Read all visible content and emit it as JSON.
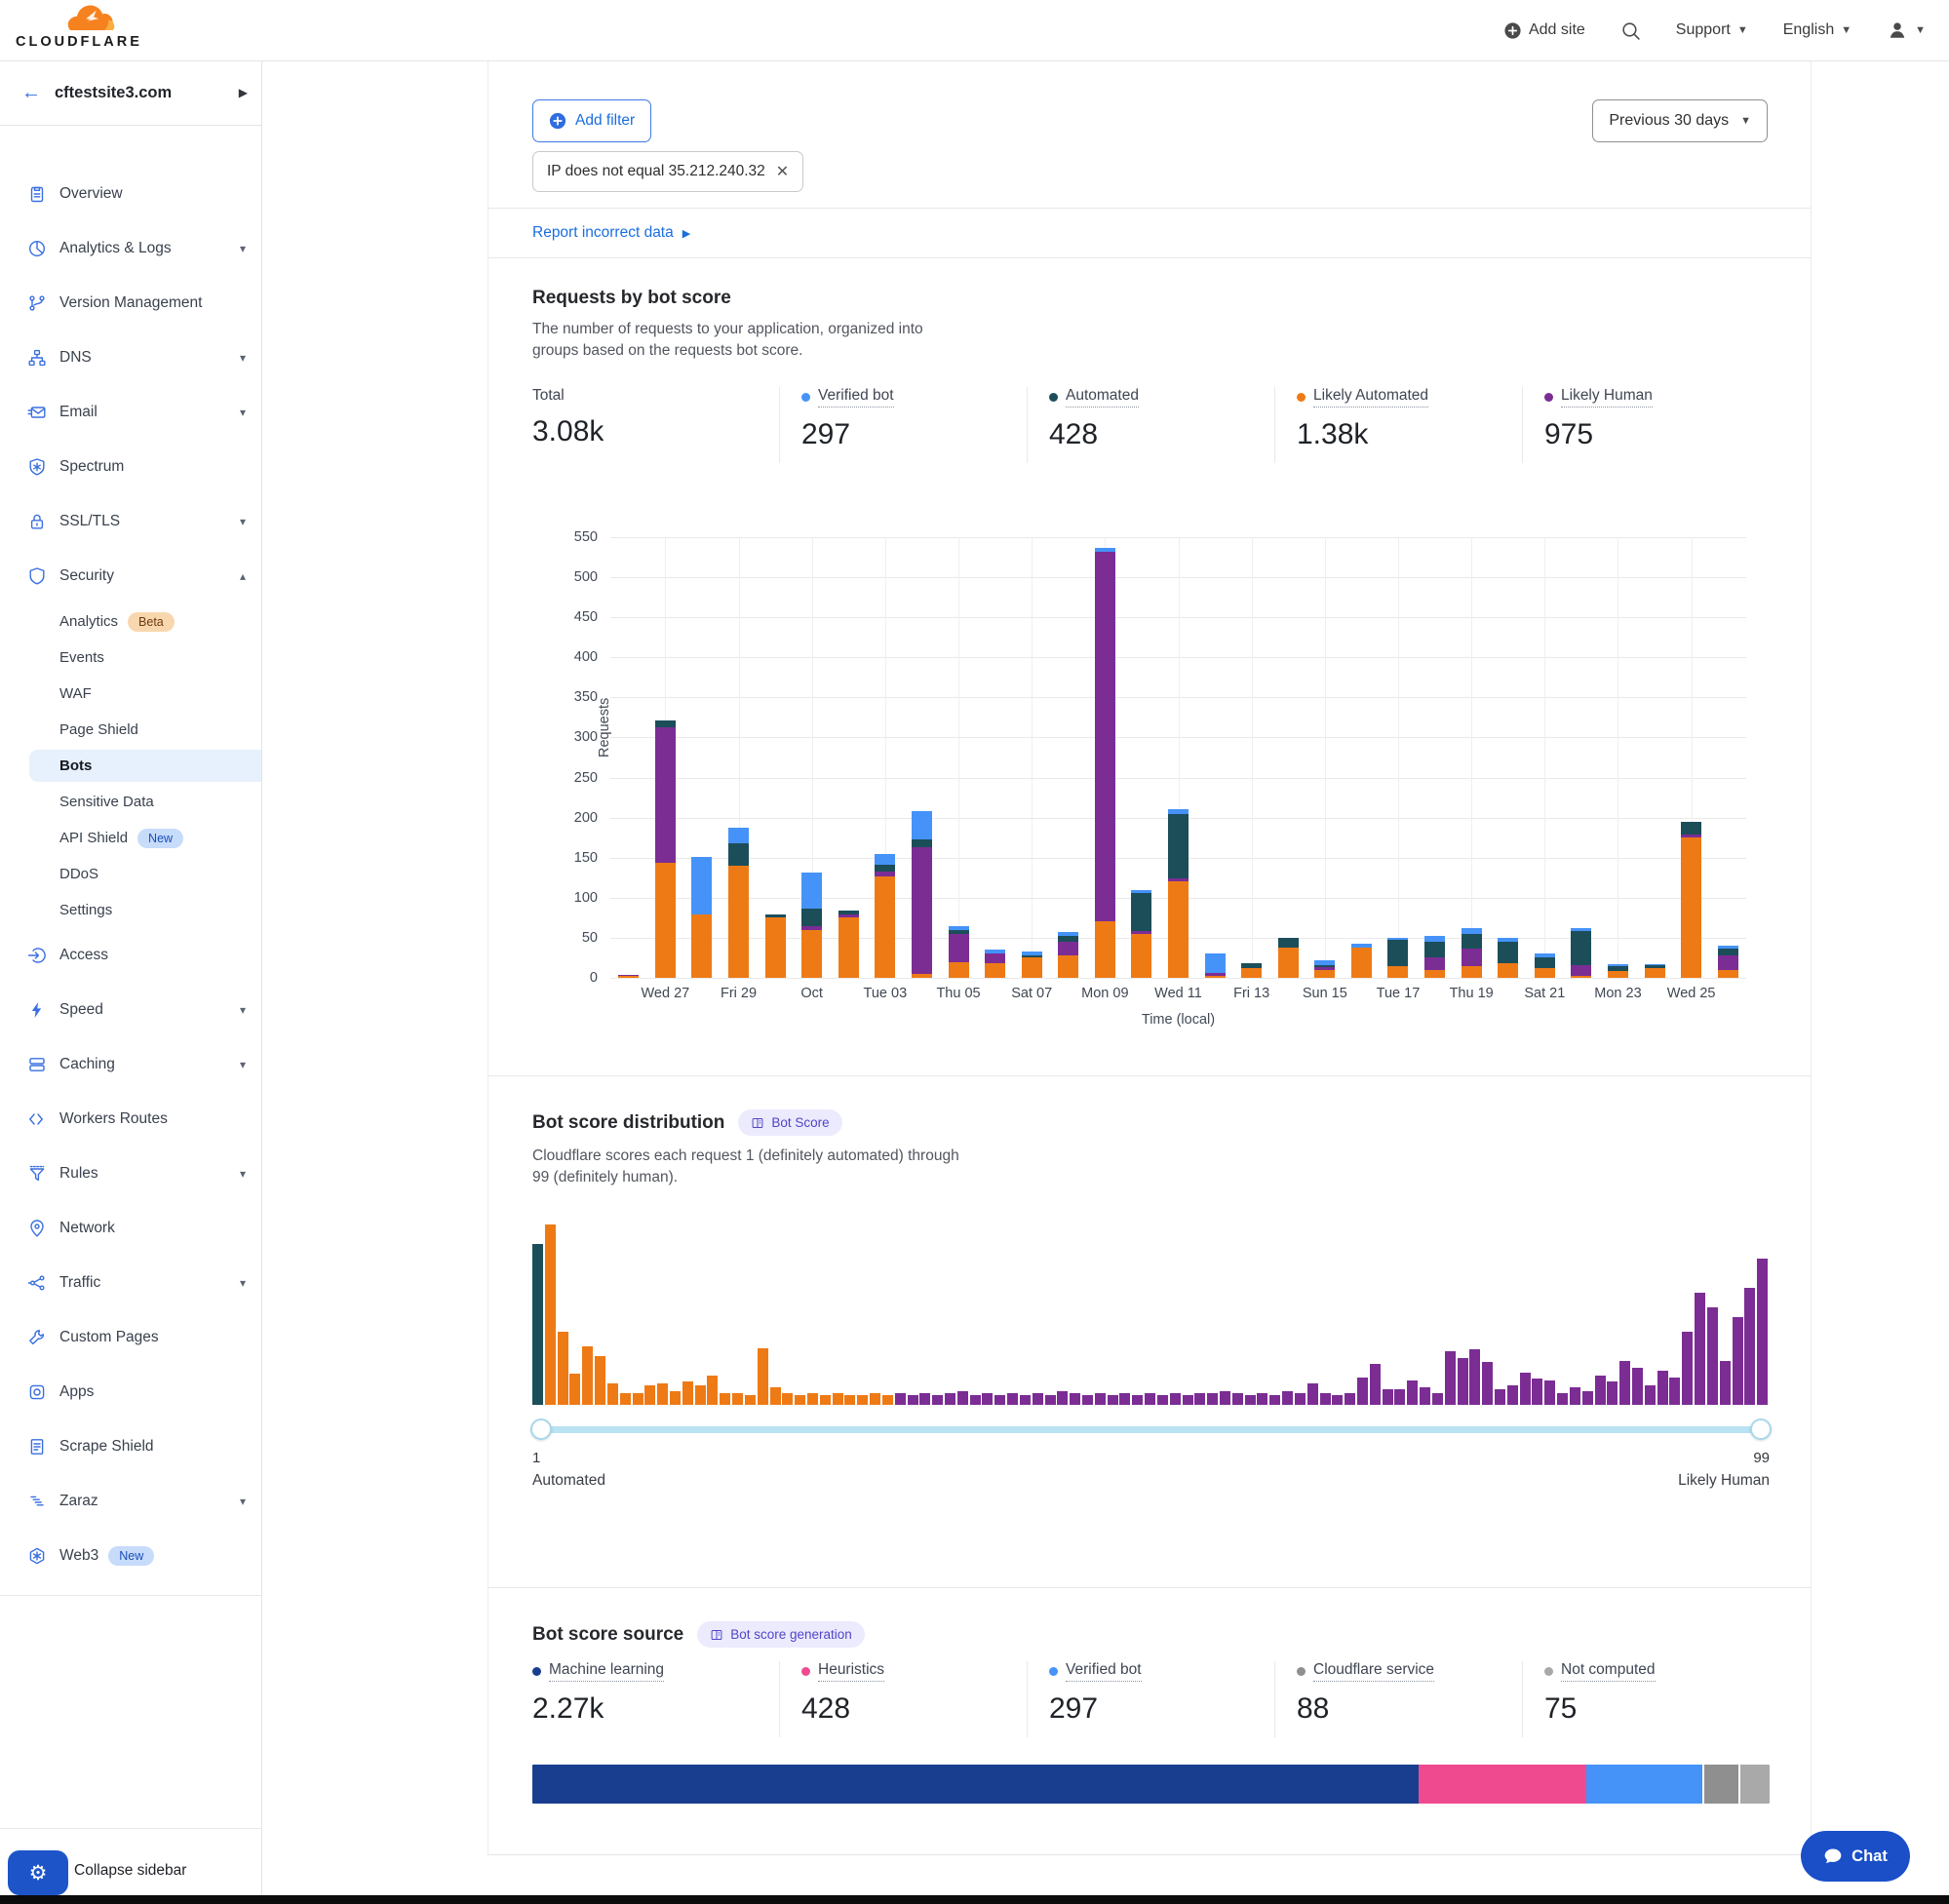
{
  "header": {
    "brand": "CLOUDFLARE",
    "add_site": "Add site",
    "support": "Support",
    "language": "English"
  },
  "sidebar": {
    "site": "cftestsite3.com",
    "items": [
      {
        "label": "Overview",
        "icon": "overview-icon"
      },
      {
        "label": "Analytics & Logs",
        "icon": "analytics-icon",
        "chevron": "down"
      },
      {
        "label": "Version Management",
        "icon": "version-icon"
      },
      {
        "label": "DNS",
        "icon": "dns-icon",
        "chevron": "down"
      },
      {
        "label": "Email",
        "icon": "email-icon",
        "chevron": "down"
      },
      {
        "label": "Spectrum",
        "icon": "spectrum-icon"
      },
      {
        "label": "SSL/TLS",
        "icon": "ssl-icon",
        "chevron": "down"
      },
      {
        "label": "Security",
        "icon": "security-icon",
        "chevron": "up"
      },
      {
        "label": "Analytics",
        "child": true,
        "badge": {
          "text": "Beta",
          "style": "beta"
        }
      },
      {
        "label": "Events",
        "child": true
      },
      {
        "label": "WAF",
        "child": true
      },
      {
        "label": "Page Shield",
        "child": true
      },
      {
        "label": "Bots",
        "child": true,
        "active": true
      },
      {
        "label": "Sensitive Data",
        "child": true
      },
      {
        "label": "API Shield",
        "child": true,
        "badge": {
          "text": "New",
          "style": "new"
        }
      },
      {
        "label": "DDoS",
        "child": true
      },
      {
        "label": "Settings",
        "child": true
      },
      {
        "label": "Access",
        "icon": "access-icon"
      },
      {
        "label": "Speed",
        "icon": "speed-icon",
        "chevron": "down"
      },
      {
        "label": "Caching",
        "icon": "caching-icon",
        "chevron": "down"
      },
      {
        "label": "Workers Routes",
        "icon": "workers-icon"
      },
      {
        "label": "Rules",
        "icon": "rules-icon",
        "chevron": "down"
      },
      {
        "label": "Network",
        "icon": "network-icon"
      },
      {
        "label": "Traffic",
        "icon": "traffic-icon",
        "chevron": "down"
      },
      {
        "label": "Custom Pages",
        "icon": "custom-pages-icon"
      },
      {
        "label": "Apps",
        "icon": "apps-icon"
      },
      {
        "label": "Scrape Shield",
        "icon": "scrape-shield-icon"
      },
      {
        "label": "Zaraz",
        "icon": "zaraz-icon",
        "chevron": "down"
      },
      {
        "label": "Web3",
        "icon": "web3-icon",
        "badge": {
          "text": "New",
          "style": "new"
        }
      }
    ],
    "collapse": "Collapse sidebar"
  },
  "filters": {
    "add_filter": "Add filter",
    "chip": "IP does not equal 35.212.240.32",
    "range": "Previous 30 days"
  },
  "report_link": "Report incorrect data",
  "requests_section": {
    "title": "Requests by bot score",
    "description": "The number of requests to your application, organized into groups based on the requests bot score.",
    "stats": [
      {
        "label": "Total",
        "value": "3.08k",
        "color": null
      },
      {
        "label": "Verified bot",
        "value": "297",
        "color": "#4593f8"
      },
      {
        "label": "Automated",
        "value": "428",
        "color": "#1c4e5a"
      },
      {
        "label": "Likely Automated",
        "value": "1.38k",
        "color": "#ee7a16"
      },
      {
        "label": "Likely Human",
        "value": "975",
        "color": "#7b2d94"
      }
    ]
  },
  "distribution_section": {
    "title": "Bot score distribution",
    "badge": "Bot Score",
    "description": "Cloudflare scores each request 1 (definitely automated) through 99 (definitely human).",
    "slider": {
      "min": "1",
      "max": "99",
      "min_label": "Automated",
      "max_label": "Likely Human"
    }
  },
  "source_section": {
    "title": "Bot score source",
    "badge": "Bot score generation",
    "stats": [
      {
        "label": "Machine learning",
        "value": "2.27k",
        "color": "#1a3e8f"
      },
      {
        "label": "Heuristics",
        "value": "428",
        "color": "#ef4a8f"
      },
      {
        "label": "Verified bot",
        "value": "297",
        "color": "#4593f8"
      },
      {
        "label": "Cloudflare service",
        "value": "88",
        "color": "#8f8f8f"
      },
      {
        "label": "Not computed",
        "value": "75",
        "color": "#a9a9a9"
      }
    ],
    "segments": [
      {
        "label": "Machine learning",
        "value": 2270,
        "color": "#1a3e8f"
      },
      {
        "label": "Heuristics",
        "value": 428,
        "color": "#ef4a8f"
      },
      {
        "label": "Verified bot",
        "value": 297,
        "color": "#4593f8"
      },
      {
        "label": "Cloudflare service",
        "value": 88,
        "color": "#8f8f8f"
      },
      {
        "label": "Not computed",
        "value": 75,
        "color": "#a9a9a9"
      }
    ]
  },
  "chat_label": "Chat",
  "chart_data": [
    {
      "id": "requests_by_bot_score",
      "type": "bar",
      "stacked": true,
      "title": "Requests by bot score",
      "xlabel": "Time (local)",
      "ylabel": "Requests",
      "ylim": [
        0,
        550
      ],
      "ytick_step": 50,
      "grid": true,
      "tick_labels": [
        "Wed 27",
        "Fri 29",
        "Oct",
        "Tue 03",
        "Thu 05",
        "Sat 07",
        "Mon 09",
        "Wed 11",
        "Fri 13",
        "Sun 15",
        "Tue 17",
        "Thu 19",
        "Sat 21",
        "Mon 23",
        "Wed 25"
      ],
      "tick_start_index": 1,
      "tick_every": 2,
      "series": [
        {
          "name": "Likely Automated",
          "color": "#ee7a16",
          "values": [
            3,
            143,
            79,
            140,
            75,
            60,
            76,
            127,
            5,
            20,
            18,
            25,
            28,
            70,
            55,
            120,
            3,
            12,
            38,
            10,
            38,
            15,
            10,
            15,
            18,
            12,
            3,
            8,
            12,
            175,
            10
          ]
        },
        {
          "name": "Likely Human",
          "color": "#7b2d94",
          "values": [
            1,
            170,
            0,
            0,
            0,
            4,
            3,
            6,
            158,
            35,
            12,
            0,
            17,
            462,
            3,
            4,
            3,
            0,
            0,
            3,
            0,
            0,
            15,
            22,
            0,
            0,
            13,
            0,
            0,
            4,
            18
          ]
        },
        {
          "name": "Automated",
          "color": "#1c4e5a",
          "values": [
            0,
            8,
            0,
            28,
            4,
            23,
            5,
            8,
            10,
            5,
            0,
            3,
            7,
            0,
            48,
            80,
            0,
            6,
            12,
            3,
            0,
            33,
            20,
            18,
            27,
            13,
            42,
            7,
            4,
            16,
            8
          ]
        },
        {
          "name": "Verified bot",
          "color": "#4593f8",
          "values": [
            0,
            0,
            72,
            20,
            0,
            44,
            0,
            13,
            35,
            5,
            5,
            5,
            5,
            5,
            4,
            7,
            25,
            0,
            0,
            6,
            5,
            2,
            7,
            7,
            5,
            5,
            4,
            2,
            1,
            0,
            4
          ]
        }
      ]
    },
    {
      "id": "bot_score_distribution",
      "type": "histogram",
      "x_range": [
        1,
        99
      ],
      "color_rules": {
        "score_1": "#1c4e5a",
        "scores_2_29": "#ee7a16",
        "scores_30_99": "#7b2d94"
      },
      "values": [
        165,
        185,
        75,
        32,
        60,
        50,
        22,
        12,
        12,
        20,
        22,
        14,
        24,
        20,
        30,
        12,
        12,
        10,
        58,
        18,
        12,
        10,
        12,
        10,
        12,
        10,
        10,
        12,
        10,
        12,
        10,
        12,
        10,
        12,
        14,
        10,
        12,
        10,
        12,
        10,
        12,
        10,
        14,
        12,
        10,
        12,
        10,
        12,
        10,
        12,
        10,
        12,
        10,
        12,
        12,
        14,
        12,
        10,
        12,
        10,
        14,
        12,
        22,
        12,
        10,
        12,
        28,
        42,
        16,
        16,
        25,
        18,
        12,
        55,
        48,
        57,
        44,
        16,
        20,
        33,
        27,
        25,
        12,
        18,
        14,
        30,
        24,
        45,
        38,
        20,
        35,
        28,
        75,
        115,
        100,
        45,
        90,
        120,
        150
      ]
    }
  ]
}
